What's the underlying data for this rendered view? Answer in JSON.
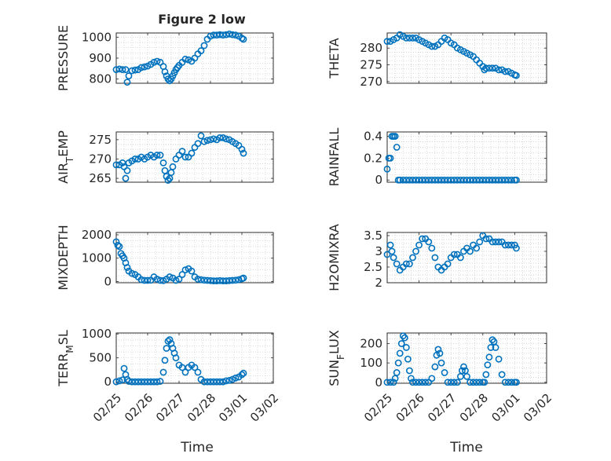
{
  "figure": {
    "title": "Figure 2 low",
    "xlabel": "Time",
    "x_ticks": [
      "02/25",
      "02/26",
      "02/27",
      "02/28",
      "03/01",
      "03/02"
    ],
    "marker_color": "#0072BD"
  },
  "chart_data": [
    {
      "type": "scatter",
      "ylabel": "PRESSURE",
      "ylim": [
        780,
        1020
      ],
      "yticks": [
        "800",
        "900",
        "1000"
      ],
      "grid": true,
      "x": [
        0,
        0.1,
        0.2,
        0.3,
        0.35,
        0.4,
        0.5,
        0.6,
        0.7,
        0.8,
        0.9,
        1.0,
        1.1,
        1.2,
        1.3,
        1.4,
        1.5,
        1.55,
        1.6,
        1.65,
        1.7,
        1.75,
        1.8,
        1.85,
        1.9,
        1.95,
        2.0,
        2.1,
        2.2,
        2.3,
        2.4,
        2.5,
        2.6,
        2.7,
        2.8,
        2.9,
        3.0,
        3.1,
        3.2,
        3.3,
        3.4,
        3.5,
        3.6,
        3.7,
        3.8,
        3.9,
        4.0,
        4.05
      ],
      "y": [
        845,
        848,
        845,
        845,
        785,
        815,
        840,
        843,
        845,
        855,
        858,
        862,
        870,
        880,
        885,
        880,
        860,
        835,
        815,
        800,
        792,
        800,
        815,
        830,
        845,
        855,
        865,
        880,
        895,
        892,
        885,
        900,
        920,
        935,
        960,
        990,
        1005,
        1010,
        1010,
        1012,
        1010,
        1012,
        1015,
        1012,
        1010,
        1005,
        995,
        990
      ]
    },
    {
      "type": "scatter",
      "ylabel": "THETA",
      "ylim": [
        269.5,
        284.5
      ],
      "yticks": [
        "270",
        "275",
        "280"
      ],
      "grid": true,
      "x": [
        0,
        0.1,
        0.2,
        0.3,
        0.4,
        0.5,
        0.6,
        0.7,
        0.8,
        0.9,
        1.0,
        1.1,
        1.2,
        1.3,
        1.4,
        1.5,
        1.6,
        1.7,
        1.8,
        1.9,
        2.0,
        2.1,
        2.2,
        2.3,
        2.4,
        2.5,
        2.6,
        2.7,
        2.8,
        2.9,
        3.0,
        3.05,
        3.1,
        3.2,
        3.3,
        3.4,
        3.5,
        3.6,
        3.7,
        3.8,
        3.9,
        4.0,
        4.05
      ],
      "y": [
        282,
        282,
        282.5,
        283,
        284,
        283.5,
        283,
        283,
        283,
        283,
        282.5,
        282,
        281.5,
        281,
        280.5,
        280.5,
        281,
        282,
        283,
        282.5,
        281.5,
        281,
        280,
        279.5,
        279,
        278.5,
        278,
        277.5,
        276.5,
        275.5,
        274.5,
        273.5,
        274,
        274,
        274,
        274,
        273.5,
        273.5,
        273,
        273,
        272.5,
        272,
        271.8
      ]
    },
    {
      "type": "scatter",
      "ylabel": "AIR_TEMP",
      "ylim": [
        264,
        277
      ],
      "yticks": [
        "265",
        "270",
        "275"
      ],
      "grid": true,
      "x": [
        0,
        0.1,
        0.2,
        0.25,
        0.3,
        0.35,
        0.4,
        0.5,
        0.6,
        0.7,
        0.8,
        0.9,
        1.0,
        1.1,
        1.2,
        1.3,
        1.4,
        1.5,
        1.55,
        1.6,
        1.65,
        1.7,
        1.75,
        1.8,
        1.9,
        2.0,
        2.1,
        2.2,
        2.3,
        2.4,
        2.5,
        2.6,
        2.7,
        2.8,
        2.9,
        3.0,
        3.1,
        3.2,
        3.3,
        3.4,
        3.5,
        3.6,
        3.7,
        3.8,
        3.9,
        4.0,
        4.05
      ],
      "y": [
        268.5,
        268.5,
        269,
        268,
        265,
        267,
        269,
        269.5,
        270,
        270,
        270.5,
        270,
        270.5,
        271,
        270.5,
        271,
        271,
        269,
        267,
        265.5,
        264.5,
        265,
        266.5,
        268,
        270,
        271,
        272,
        270.5,
        270.5,
        271.5,
        273,
        274,
        276,
        274.5,
        274.8,
        275,
        275.2,
        275,
        275.5,
        275.5,
        275.2,
        275,
        274.5,
        274,
        273.5,
        272.5,
        271.5
      ]
    },
    {
      "type": "scatter",
      "ylabel": "RAINFALL",
      "ylim": [
        -0.02,
        0.44
      ],
      "yticks": [
        "0",
        "0.2",
        "0.4"
      ],
      "grid": true,
      "x": [
        0,
        0.05,
        0.1,
        0.15,
        0.2,
        0.25,
        0.3,
        0.35,
        0.4,
        0.5,
        0.6,
        0.7,
        0.8,
        0.9,
        1.0,
        1.1,
        1.2,
        1.3,
        1.4,
        1.5,
        1.6,
        1.7,
        1.8,
        1.9,
        2.0,
        2.1,
        2.2,
        2.3,
        2.4,
        2.5,
        2.6,
        2.7,
        2.8,
        2.9,
        3.0,
        3.1,
        3.2,
        3.3,
        3.4,
        3.5,
        3.6,
        3.7,
        3.8,
        3.9,
        4.0,
        4.05
      ],
      "y": [
        0.1,
        0.2,
        0.2,
        0.4,
        0.4,
        0.4,
        0.3,
        0,
        0,
        0,
        0,
        0,
        0,
        0,
        0,
        0,
        0,
        0,
        0,
        0,
        0,
        0,
        0,
        0,
        0,
        0,
        0,
        0,
        0,
        0,
        0,
        0,
        0,
        0,
        0,
        0,
        0,
        0,
        0,
        0,
        0,
        0,
        0,
        0,
        0,
        0
      ]
    },
    {
      "type": "scatter",
      "ylabel": "MIXDEPTH",
      "ylim": [
        -50,
        2100
      ],
      "yticks": [
        "0",
        "1000",
        "2000"
      ],
      "grid": true,
      "x": [
        0,
        0.05,
        0.1,
        0.15,
        0.2,
        0.25,
        0.3,
        0.35,
        0.4,
        0.5,
        0.6,
        0.7,
        0.8,
        0.9,
        1.0,
        1.1,
        1.2,
        1.3,
        1.4,
        1.5,
        1.6,
        1.7,
        1.8,
        1.9,
        2.0,
        2.1,
        2.2,
        2.3,
        2.4,
        2.5,
        2.6,
        2.7,
        2.8,
        2.9,
        3.0,
        3.1,
        3.2,
        3.3,
        3.4,
        3.5,
        3.6,
        3.7,
        3.8,
        3.9,
        4.0,
        4.05
      ],
      "y": [
        1700,
        1550,
        1500,
        1200,
        1100,
        1000,
        800,
        600,
        450,
        350,
        300,
        200,
        80,
        50,
        50,
        60,
        200,
        100,
        50,
        40,
        100,
        200,
        150,
        50,
        100,
        300,
        500,
        550,
        450,
        200,
        100,
        80,
        60,
        50,
        40,
        30,
        30,
        40,
        30,
        30,
        40,
        50,
        60,
        80,
        120,
        150
      ]
    },
    {
      "type": "scatter",
      "ylabel": "H2OMIXRA",
      "ylim": [
        2,
        3.6
      ],
      "yticks": [
        "2",
        "2.5",
        "3",
        "3.5"
      ],
      "grid": true,
      "x": [
        0,
        0.1,
        0.15,
        0.2,
        0.3,
        0.4,
        0.5,
        0.6,
        0.7,
        0.8,
        0.9,
        1.0,
        1.1,
        1.2,
        1.3,
        1.4,
        1.5,
        1.6,
        1.7,
        1.8,
        1.9,
        2.0,
        2.1,
        2.2,
        2.3,
        2.4,
        2.5,
        2.6,
        2.7,
        2.8,
        2.9,
        3.0,
        3.1,
        3.2,
        3.3,
        3.4,
        3.5,
        3.6,
        3.7,
        3.8,
        3.9,
        4.0,
        4.05
      ],
      "y": [
        2.9,
        3.2,
        3.0,
        2.8,
        2.6,
        2.4,
        2.5,
        2.6,
        2.6,
        2.8,
        3.0,
        3.2,
        3.4,
        3.4,
        3.3,
        3.1,
        2.8,
        2.5,
        2.4,
        2.5,
        2.6,
        2.8,
        2.9,
        2.9,
        2.8,
        3.0,
        3.1,
        3.0,
        3.2,
        3.1,
        3.3,
        3.5,
        3.4,
        3.4,
        3.3,
        3.3,
        3.3,
        3.3,
        3.2,
        3.2,
        3.2,
        3.2,
        3.1
      ]
    },
    {
      "type": "scatter",
      "ylabel": "TERR_MSL",
      "ylim": [
        -30,
        1020
      ],
      "yticks": [
        "0",
        "500",
        "1000"
      ],
      "grid": true,
      "x": [
        0,
        0.1,
        0.2,
        0.25,
        0.3,
        0.35,
        0.4,
        0.5,
        0.6,
        0.7,
        0.8,
        0.9,
        1.0,
        1.1,
        1.2,
        1.3,
        1.4,
        1.5,
        1.55,
        1.6,
        1.65,
        1.7,
        1.75,
        1.8,
        1.85,
        1.9,
        2.0,
        2.1,
        2.2,
        2.3,
        2.4,
        2.5,
        2.6,
        2.7,
        2.8,
        2.9,
        3.0,
        3.1,
        3.2,
        3.3,
        3.4,
        3.5,
        3.6,
        3.7,
        3.8,
        3.9,
        4.0,
        4.05
      ],
      "y": [
        0,
        20,
        40,
        280,
        150,
        50,
        10,
        0,
        0,
        0,
        0,
        0,
        0,
        0,
        0,
        0,
        10,
        200,
        450,
        700,
        850,
        880,
        800,
        700,
        600,
        500,
        350,
        300,
        200,
        300,
        350,
        300,
        200,
        50,
        0,
        0,
        0,
        0,
        0,
        0,
        0,
        20,
        30,
        50,
        80,
        100,
        150,
        180
      ]
    },
    {
      "type": "scatter",
      "ylabel": "SUN_FLUX",
      "ylim": [
        -5,
        255
      ],
      "yticks": [
        "0",
        "100",
        "200"
      ],
      "grid": true,
      "x": [
        0,
        0.1,
        0.2,
        0.25,
        0.3,
        0.35,
        0.4,
        0.45,
        0.5,
        0.55,
        0.6,
        0.65,
        0.7,
        0.75,
        0.8,
        0.9,
        1.0,
        1.1,
        1.2,
        1.3,
        1.4,
        1.5,
        1.55,
        1.6,
        1.65,
        1.7,
        1.8,
        1.9,
        2.0,
        2.1,
        2.2,
        2.3,
        2.35,
        2.4,
        2.45,
        2.5,
        2.6,
        2.7,
        2.8,
        2.9,
        3.0,
        3.05,
        3.1,
        3.15,
        3.2,
        3.25,
        3.3,
        3.35,
        3.4,
        3.5,
        3.6,
        3.7,
        3.8,
        3.9,
        4.0,
        4.05
      ],
      "y": [
        0,
        0,
        0,
        20,
        50,
        100,
        150,
        200,
        240,
        230,
        180,
        120,
        60,
        20,
        0,
        0,
        0,
        0,
        0,
        0,
        20,
        80,
        140,
        170,
        150,
        100,
        50,
        0,
        0,
        0,
        0,
        30,
        60,
        80,
        60,
        30,
        0,
        0,
        0,
        0,
        0,
        0,
        40,
        90,
        130,
        180,
        220,
        210,
        180,
        120,
        40,
        0,
        0,
        0,
        0,
        0
      ]
    }
  ]
}
